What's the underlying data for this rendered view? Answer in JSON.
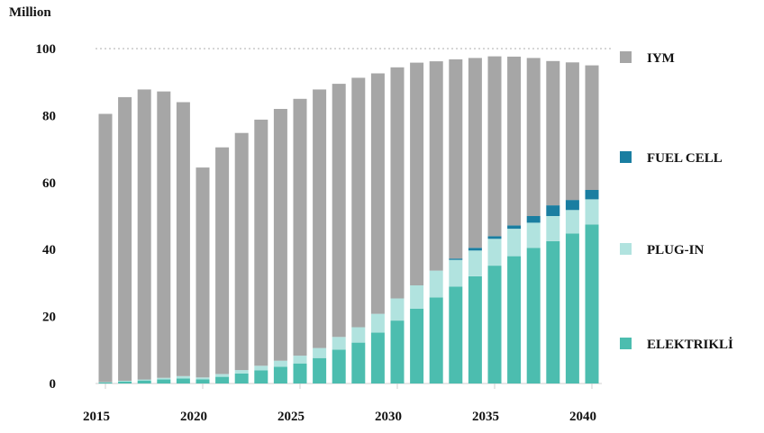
{
  "chart_data": {
    "type": "bar",
    "stacked": true,
    "ylabel": "Million",
    "ylim": [
      0,
      100
    ],
    "yticks": [
      0,
      20,
      40,
      60,
      80,
      100
    ],
    "xticks": [
      "2015",
      "2020",
      "2025",
      "2030",
      "2035",
      "2040"
    ],
    "grid": "dotted line at 100",
    "legend_placement": "right",
    "categories": [
      "2015",
      "2016",
      "2017",
      "2018",
      "2019",
      "2020",
      "2021",
      "2022",
      "2023",
      "2024",
      "2025",
      "2026",
      "2027",
      "2028",
      "2029",
      "2030",
      "2031",
      "2032",
      "2033",
      "2034",
      "2035",
      "2036",
      "2037",
      "2038",
      "2039",
      "2040"
    ],
    "totals": [
      80.5,
      85.5,
      87.8,
      87.2,
      84,
      64.5,
      70.5,
      74.8,
      78.8,
      82,
      85,
      87.8,
      89.5,
      91.3,
      92.6,
      94.4,
      95.8,
      96.2,
      96.8,
      97.2,
      97.7,
      97.6,
      97.2,
      96.3,
      95.9,
      95
    ],
    "series": [
      {
        "name": "ELEKTRIKLİ",
        "color": "#4cbdaf",
        "values": [
          0.3,
          0.6,
          0.9,
          1.2,
          1.5,
          1.2,
          2,
          3,
          3.9,
          5,
          6,
          7.6,
          10.1,
          12.2,
          15.2,
          18.8,
          22.3,
          25.7,
          28.9,
          32,
          35.2,
          38,
          40.5,
          42.5,
          44.8,
          47.5
        ]
      },
      {
        "name": "PLUG-IN",
        "color": "#b1e3df",
        "values": [
          0.1,
          0.2,
          0.3,
          0.5,
          0.7,
          0.6,
          0.8,
          1,
          1.4,
          1.8,
          2.3,
          3,
          3.8,
          4.6,
          5.6,
          6.6,
          7,
          8,
          8,
          7.7,
          8,
          8.2,
          7.5,
          7.5,
          7,
          7.5
        ]
      },
      {
        "name": "FUEL CELL",
        "color": "#1a7ea1",
        "values": [
          0,
          0,
          0,
          0,
          0,
          0,
          0,
          0,
          0,
          0,
          0,
          0,
          0,
          0,
          0,
          0,
          0,
          0,
          0.4,
          0.8,
          0.8,
          1,
          2,
          3.2,
          3,
          2.8
        ]
      },
      {
        "name": "IYM",
        "color": "#a6a6a6",
        "values": [
          80.1,
          84.7,
          86.6,
          85.5,
          81.8,
          62.7,
          67.7,
          70.8,
          73.5,
          75.2,
          76.7,
          77.2,
          75.6,
          74.5,
          71.8,
          69,
          66.5,
          62.5,
          59.5,
          56.7,
          53.7,
          50.4,
          47.2,
          43.1,
          41.1,
          37.2
        ]
      }
    ]
  }
}
